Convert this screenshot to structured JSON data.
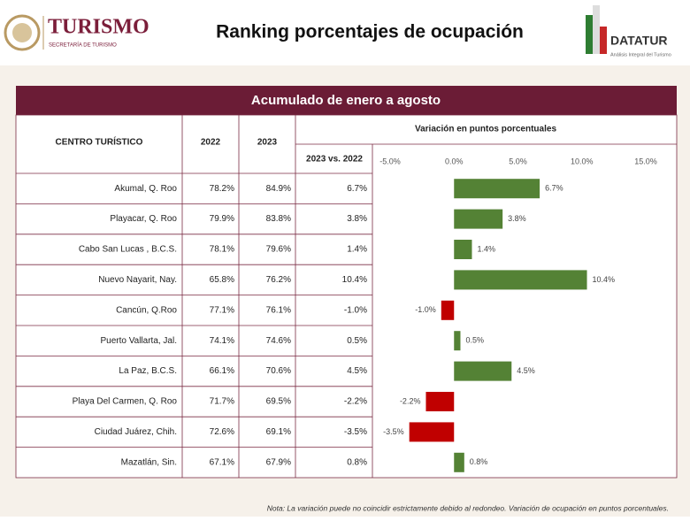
{
  "header": {
    "logo_title": "TURISMO",
    "logo_subtitle": "SECRETARÍA DE TURISMO",
    "title": "Ranking porcentajes de ocupación",
    "brand": "DATATUR",
    "brand_subtitle": "Análisis Integral del Turismo"
  },
  "table": {
    "title": "Acumulado de enero a agosto",
    "columns": [
      "CENTRO TURÍSTICO",
      "2022",
      "2023",
      "Variación en puntos porcentuales"
    ],
    "subheader": "2023 vs. 2022",
    "rows": [
      [
        "Akumal, Q. Roo",
        "78.2%",
        "84.9%"
      ],
      [
        "Playacar, Q. Roo",
        "79.9%",
        "83.8%"
      ],
      [
        "Cabo San Lucas , B.C.S.",
        "78.1%",
        "79.6%"
      ],
      [
        "Nuevo Nayarit, Nay.",
        "65.8%",
        "76.2%"
      ],
      [
        "Cancún, Q.Roo",
        "77.1%",
        "76.1%"
      ],
      [
        "Puerto Vallarta, Jal.",
        "74.1%",
        "74.6%"
      ],
      [
        "La Paz, B.C.S.",
        "66.1%",
        "70.6%"
      ],
      [
        "Playa Del Carmen, Q. Roo",
        "71.7%",
        "69.5%"
      ],
      [
        "Ciudad Juárez, Chih.",
        "72.6%",
        "69.1%"
      ],
      [
        "Mazatlán, Sin.",
        "67.1%",
        "67.9%"
      ]
    ]
  },
  "chart_data": {
    "type": "bar",
    "orientation": "horizontal",
    "values": [
      6.7,
      3.8,
      1.4,
      10.4,
      -1.0,
      0.5,
      4.5,
      -2.2,
      -3.5,
      0.8
    ],
    "value_labels": [
      "6.7%",
      "3.8%",
      "1.4%",
      "10.4%",
      "-1.0%",
      "0.5%",
      "4.5%",
      "-2.2%",
      "-3.5%",
      "0.8%"
    ],
    "positive_color": "#548235",
    "negative_color": "#c00000",
    "xlim": [
      -5,
      15
    ],
    "xticks": [
      {
        "value": -5,
        "label": "-5.0%"
      },
      {
        "value": 0,
        "label": "0.0%"
      },
      {
        "value": 5,
        "label": "5.0%"
      },
      {
        "value": 10,
        "label": "10.0%"
      },
      {
        "value": 15,
        "label": "15.0%"
      }
    ]
  },
  "note": "Nota: La variación puede no coincidir estrictamente debido al redondeo. Variación de ocupación en puntos porcentuales."
}
